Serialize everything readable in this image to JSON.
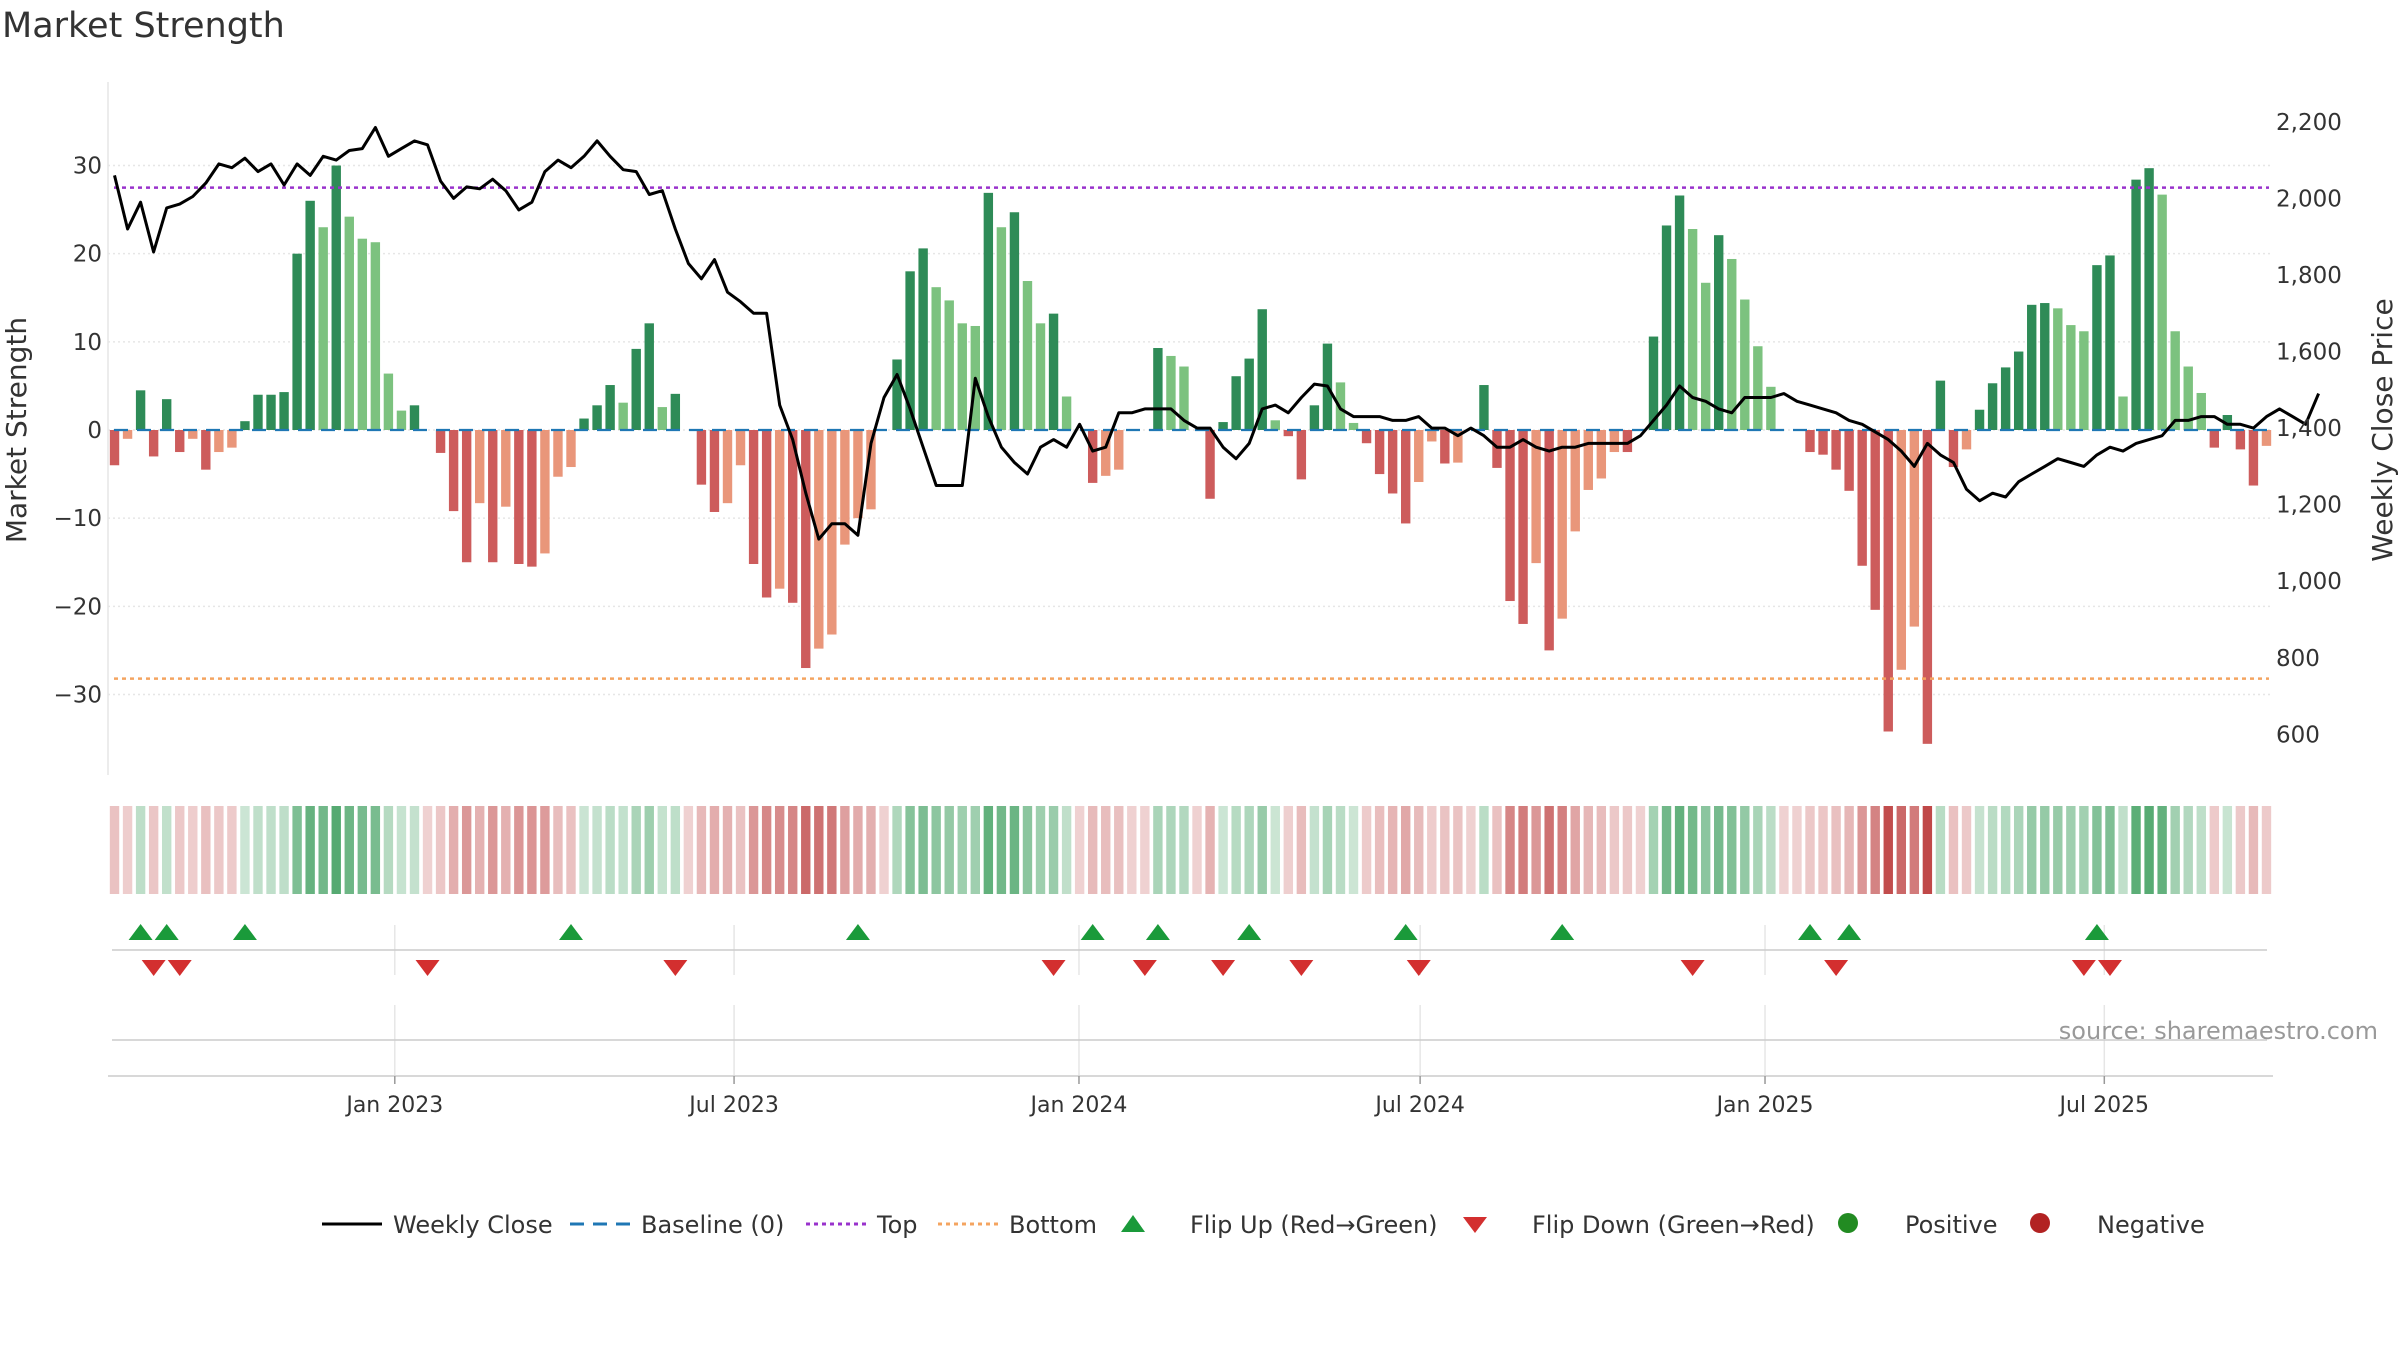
{
  "chart_data": {
    "type": "bar",
    "title": "Market Strength",
    "ylabel": "Market Strength",
    "y2label": "Weekly Close Price",
    "ylim": [
      -38,
      38
    ],
    "y2lim": [
      520,
      2270
    ],
    "yticks": [
      30,
      20,
      10,
      0,
      -10,
      -20,
      -30
    ],
    "ytick_labels": [
      "30",
      "20",
      "10",
      "0",
      "−10",
      "−20",
      "−30"
    ],
    "y2ticks": [
      2200,
      2000,
      1800,
      1600,
      1400,
      1200,
      1000,
      800,
      600
    ],
    "y2tick_labels": [
      "2,200",
      "2,000",
      "1,800",
      "1,600",
      "1,400",
      "1,200",
      "1,000",
      "800",
      "600"
    ],
    "x_start": "2022-08-01",
    "x_end": "2025-09-29",
    "xticks": [
      {
        "date": "2023-01-01",
        "label": "Jan 2023"
      },
      {
        "date": "2023-07-01",
        "label": "Jul 2023"
      },
      {
        "date": "2024-01-01",
        "label": "Jan 2024"
      },
      {
        "date": "2024-07-01",
        "label": "Jul 2024"
      },
      {
        "date": "2025-01-01",
        "label": "Jan 2025"
      },
      {
        "date": "2025-07-01",
        "label": "Jul 2025"
      }
    ],
    "top_line": 27.5,
    "bottom_line": -28.2,
    "source_text": "source: sharemaestro.com",
    "colors": {
      "pos_strong": "#2e8b57",
      "pos_light": "#7cc27f",
      "neg_strong": "#cd5c5c",
      "neg_light": "#e9967a",
      "close": "#000000",
      "baseline": "#1f77b4",
      "top": "#9932cc",
      "bottom": "#f4a460",
      "flip_up": "#1a9a3a",
      "flip_down": "#d32f2f",
      "positive": "#228b22",
      "negative": "#b22222"
    },
    "strength": [
      -4,
      -1,
      4.5,
      -3,
      3.5,
      -2.5,
      -1,
      -4.5,
      -2.5,
      -2,
      1,
      4,
      4,
      4.3,
      20,
      26,
      23,
      30,
      24.2,
      21.7,
      21.3,
      6.4,
      2.2,
      2.8,
      0,
      -2.6,
      -9.2,
      -15,
      -8.3,
      -15,
      -8.7,
      -15.2,
      -15.5,
      -14,
      -5.3,
      -4.2,
      1.3,
      2.8,
      5.1,
      3.1,
      9.2,
      12.1,
      2.6,
      4.1,
      0,
      -6.2,
      -9.3,
      -8.3,
      -4,
      -15.2,
      -19,
      -18,
      -19.6,
      -27,
      -24.8,
      -23.2,
      -13,
      -10,
      -9,
      0,
      8,
      18,
      20.6,
      16.2,
      14.7,
      12.1,
      11.8,
      26.9,
      23,
      24.7,
      16.9,
      12.1,
      13.2,
      3.8,
      0,
      -6,
      -5.2,
      -4.5,
      0,
      0,
      9.3,
      8.4,
      7.2,
      0,
      -7.8,
      0.9,
      6.1,
      8.1,
      13.7,
      1.1,
      -0.7,
      -5.6,
      2.8,
      9.8,
      5.4,
      0.8,
      -1.5,
      -5,
      -7.2,
      -10.6,
      -5.9,
      -1.3,
      -3.8,
      -3.7,
      0,
      5.1,
      -4.3,
      -19.4,
      -22,
      -15.1,
      -25,
      -21.4,
      -11.5,
      -6.8,
      -5.5,
      -2.5,
      -2.5,
      0,
      10.6,
      23.2,
      26.6,
      22.8,
      16.7,
      22.1,
      19.4,
      14.8,
      9.5,
      4.9,
      0,
      0,
      -2.5,
      -2.8,
      -4.5,
      -6.9,
      -15.4,
      -20.4,
      -34.2,
      -27.2,
      -22.3,
      -35.6,
      5.6,
      -4.2,
      -2.2,
      2.3,
      5.3,
      7.1,
      8.9,
      14.2,
      14.4,
      13.8,
      11.9,
      11.2,
      18.7,
      19.8,
      3.8,
      28.4,
      29.7,
      26.7,
      11.2,
      7.2,
      4.2,
      -2,
      1.7,
      -2.2,
      -6.3,
      -1.8
    ],
    "close": [
      2060,
      1920,
      1990,
      1860,
      1975,
      1985,
      2005,
      2040,
      2090,
      2080,
      2105,
      2070,
      2090,
      2035,
      2090,
      2060,
      2110,
      2100,
      2125,
      2130,
      2185,
      2110,
      2130,
      2150,
      2140,
      2045,
      2000,
      2030,
      2025,
      2050,
      2020,
      1970,
      1990,
      2070,
      2100,
      2080,
      2110,
      2150,
      2110,
      2075,
      2070,
      2010,
      2020,
      1920,
      1830,
      1790,
      1840,
      1755,
      1730,
      1700,
      1700,
      1460,
      1370,
      1230,
      1110,
      1150,
      1150,
      1120,
      1360,
      1480,
      1540,
      1450,
      1350,
      1250,
      1250,
      1250,
      1530,
      1430,
      1350,
      1310,
      1280,
      1350,
      1370,
      1350,
      1410,
      1340,
      1350,
      1440,
      1440,
      1450,
      1450,
      1450,
      1420,
      1400,
      1400,
      1350,
      1320,
      1360,
      1450,
      1460,
      1440,
      1480,
      1515,
      1510,
      1450,
      1430,
      1430,
      1430,
      1420,
      1420,
      1430,
      1400,
      1400,
      1380,
      1400,
      1380,
      1350,
      1350,
      1370,
      1350,
      1340,
      1350,
      1350,
      1360,
      1360,
      1360,
      1360,
      1380,
      1420,
      1460,
      1510,
      1480,
      1470,
      1450,
      1440,
      1480,
      1480,
      1480,
      1490,
      1470,
      1460,
      1450,
      1440,
      1420,
      1410,
      1390,
      1370,
      1340,
      1300,
      1360,
      1330,
      1310,
      1240,
      1210,
      1230,
      1220,
      1260,
      1280,
      1300,
      1320,
      1310,
      1300,
      1330,
      1350,
      1340,
      1360,
      1370,
      1380,
      1420,
      1420,
      1430,
      1430,
      1410,
      1410,
      1400,
      1430,
      1450,
      1430,
      1410,
      1490
    ],
    "flip_up_weeks": [
      2,
      4,
      10,
      35,
      57,
      75,
      80,
      87,
      99,
      111,
      130,
      133,
      152
    ],
    "flip_down_weeks": [
      3,
      5,
      24,
      43,
      72,
      79,
      85,
      91,
      100,
      121,
      132,
      151,
      153
    ],
    "legend": [
      {
        "label": "Weekly Close",
        "symbol": "line-solid",
        "color": "#000000"
      },
      {
        "label": "Baseline (0)",
        "symbol": "line-dash",
        "color": "#1f77b4"
      },
      {
        "label": "Top",
        "symbol": "line-dot",
        "color": "#9932cc"
      },
      {
        "label": "Bottom",
        "symbol": "line-dot",
        "color": "#f4a460"
      },
      {
        "label": "Flip Up (Red→Green)",
        "symbol": "triangle-up",
        "color": "#1a9a3a"
      },
      {
        "label": "Flip Down (Green→Red)",
        "symbol": "triangle-down",
        "color": "#d32f2f"
      },
      {
        "label": "Positive",
        "symbol": "circle",
        "color": "#228b22"
      },
      {
        "label": "Negative",
        "symbol": "circle",
        "color": "#b22222"
      }
    ]
  }
}
